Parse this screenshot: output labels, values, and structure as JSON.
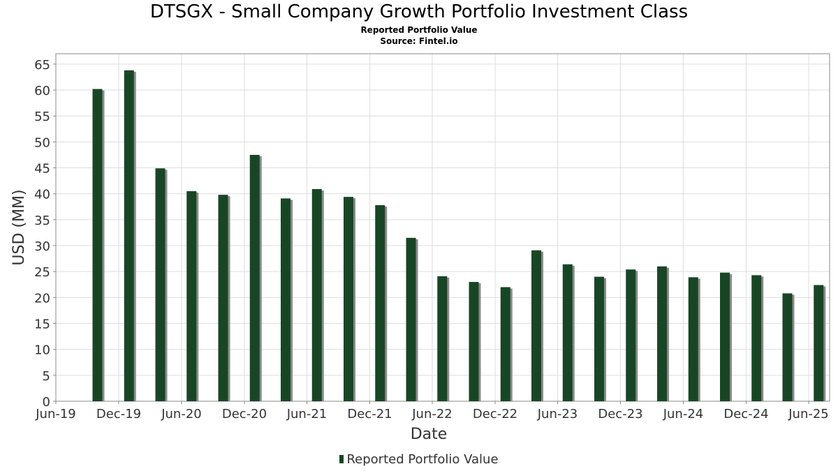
{
  "title": "DTSGX - Small Company Growth Portfolio Investment Class",
  "subtitle": "Reported Portfolio Value",
  "source": "Source: Fintel.io",
  "legend": {
    "label": "Reported Portfolio Value"
  },
  "colors": {
    "bar": "#184625",
    "bar_shadow": "#8a8a8a",
    "grid": "#dddddd",
    "axis": "#888888"
  },
  "chart_data": {
    "type": "bar",
    "title": "DTSGX - Small Company Growth Portfolio Investment Class",
    "subtitle": "Reported Portfolio Value",
    "xlabel": "Date",
    "ylabel": "USD (MM)",
    "ylim": [
      0,
      67
    ],
    "yticks": [
      0,
      5,
      10,
      15,
      20,
      25,
      30,
      35,
      40,
      45,
      50,
      55,
      60,
      65
    ],
    "xlim": [
      "2019-06-01",
      "2025-08-01"
    ],
    "xticks": [
      {
        "date": "2019-06-01",
        "label": "Jun-19"
      },
      {
        "date": "2019-12-01",
        "label": "Dec-19"
      },
      {
        "date": "2020-06-01",
        "label": "Jun-20"
      },
      {
        "date": "2020-12-01",
        "label": "Dec-20"
      },
      {
        "date": "2021-06-01",
        "label": "Jun-21"
      },
      {
        "date": "2021-12-01",
        "label": "Dec-21"
      },
      {
        "date": "2022-06-01",
        "label": "Jun-22"
      },
      {
        "date": "2022-12-01",
        "label": "Dec-22"
      },
      {
        "date": "2023-06-01",
        "label": "Jun-23"
      },
      {
        "date": "2023-12-01",
        "label": "Dec-23"
      },
      {
        "date": "2024-06-01",
        "label": "Jun-24"
      },
      {
        "date": "2024-12-01",
        "label": "Dec-24"
      },
      {
        "date": "2025-06-01",
        "label": "Jun-25"
      }
    ],
    "grid": true,
    "legend_position": "bottom",
    "series": [
      {
        "name": "Reported Portfolio Value",
        "x": [
          "2019-09-30",
          "2019-12-31",
          "2020-03-31",
          "2020-06-30",
          "2020-09-30",
          "2020-12-31",
          "2021-03-31",
          "2021-06-30",
          "2021-09-30",
          "2021-12-31",
          "2022-03-31",
          "2022-06-30",
          "2022-09-30",
          "2022-12-31",
          "2023-03-31",
          "2023-06-30",
          "2023-09-30",
          "2023-12-31",
          "2024-03-31",
          "2024-06-30",
          "2024-09-30",
          "2024-12-31",
          "2025-03-31",
          "2025-06-30"
        ],
        "values": [
          60.2,
          63.8,
          44.9,
          40.5,
          39.8,
          47.5,
          39.1,
          40.9,
          39.4,
          37.8,
          31.5,
          24.1,
          23.0,
          22.0,
          29.1,
          26.4,
          24.0,
          25.4,
          26.0,
          23.9,
          24.8,
          24.3,
          20.8,
          22.4
        ]
      }
    ]
  }
}
